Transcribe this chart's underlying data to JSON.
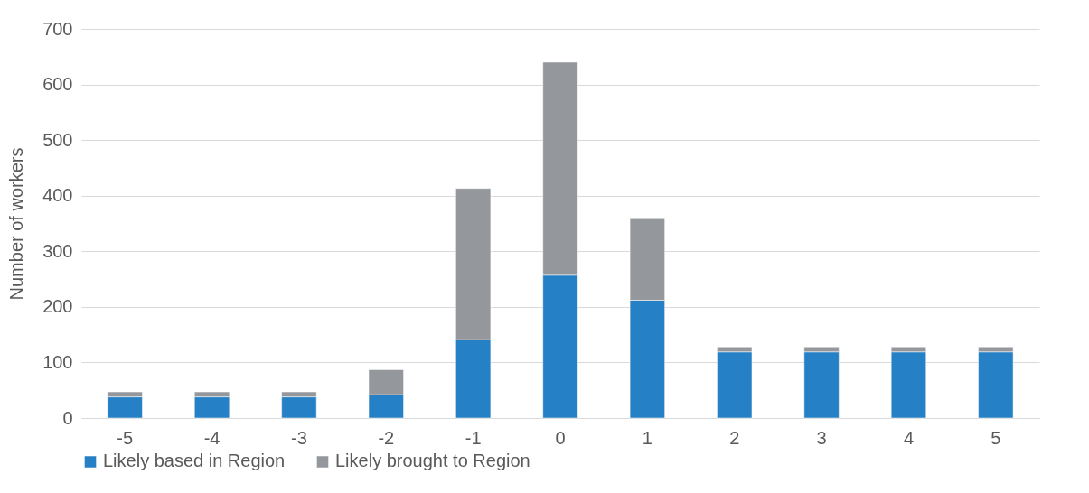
{
  "chart_data": {
    "type": "bar",
    "stacked": true,
    "ylabel": "Number of workers",
    "categories": [
      "-5",
      "-4",
      "-3",
      "-2",
      "-1",
      "0",
      "1",
      "2",
      "3",
      "4",
      "5"
    ],
    "series": [
      {
        "name": "Likely based in Region",
        "color": "#2680c5",
        "values": [
          38,
          38,
          38,
          42,
          141,
          257,
          212,
          119,
          119,
          119,
          119
        ]
      },
      {
        "name": "Likely brought to Region",
        "color": "#94979b",
        "values": [
          9,
          9,
          9,
          45,
          272,
          383,
          148,
          9,
          9,
          9,
          9
        ]
      }
    ],
    "ylim": [
      0,
      700
    ],
    "yticks": [
      0,
      100,
      200,
      300,
      400,
      500,
      600,
      700
    ],
    "grid": "y",
    "legend": "bottom"
  }
}
